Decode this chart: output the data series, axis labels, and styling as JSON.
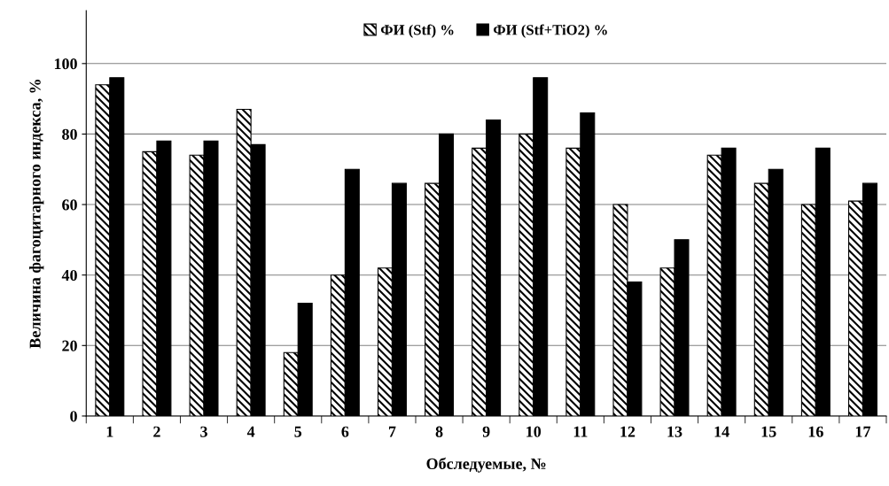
{
  "chart_data": {
    "type": "bar",
    "xlabel": "Обследуемые, №",
    "ylabel": "Величина фагоцитарного индекса, %",
    "categories": [
      "1",
      "2",
      "3",
      "4",
      "5",
      "6",
      "7",
      "8",
      "9",
      "10",
      "11",
      "12",
      "13",
      "14",
      "15",
      "16",
      "17"
    ],
    "series": [
      {
        "name": "ФИ (Stf) %",
        "color": "#000000",
        "values": [
          94,
          75,
          74,
          87,
          18,
          40,
          42,
          66,
          76,
          80,
          76,
          60,
          42,
          74,
          66,
          60,
          61
        ]
      },
      {
        "name": "ФИ (Stf+TiO2) %",
        "color": "#000000",
        "values": [
          96,
          78,
          78,
          77,
          32,
          70,
          66,
          80,
          84,
          96,
          86,
          38,
          50,
          76,
          70,
          76,
          66
        ]
      }
    ],
    "ylim": [
      0,
      115
    ],
    "yticks": [
      0,
      20,
      40,
      60,
      80,
      100
    ],
    "grid": "y",
    "legend": "top"
  }
}
